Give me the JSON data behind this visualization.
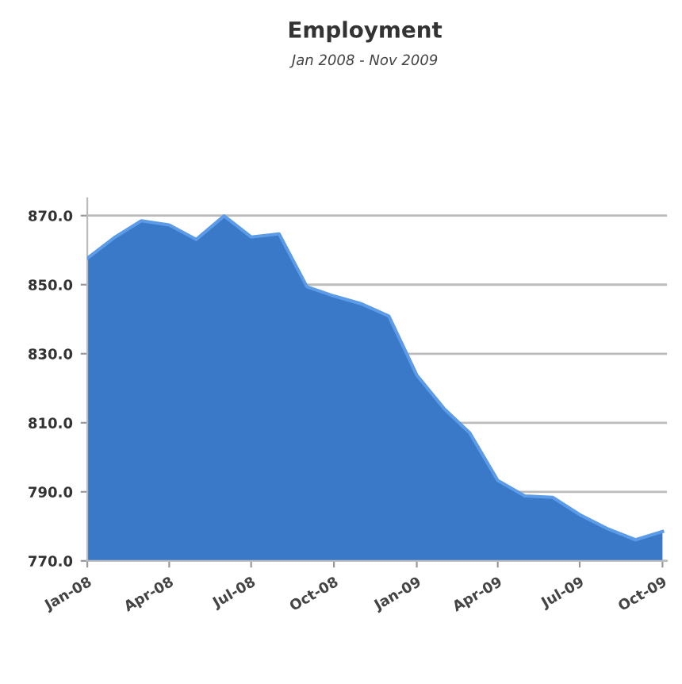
{
  "chart_data": {
    "type": "area",
    "title": "Employment",
    "subtitle": "Jan 2008 - Nov 2009",
    "x": [
      "2008-01",
      "2008-02",
      "2008-03",
      "2008-04",
      "2008-05",
      "2008-06",
      "2008-07",
      "2008-08",
      "2008-09",
      "2008-10",
      "2008-11",
      "2008-12",
      "2009-01",
      "2009-02",
      "2009-03",
      "2009-04",
      "2009-05",
      "2009-06",
      "2009-07",
      "2009-08",
      "2009-09",
      "2009-10"
    ],
    "series": [
      {
        "color": "#3a78c8",
        "values": [
          857.6,
          863.8,
          868.5,
          867.3,
          863.1,
          869.9,
          863.8,
          864.7,
          849.4,
          846.7,
          844.4,
          840.9,
          823.8,
          813.9,
          807.0,
          793.3,
          788.8,
          788.4,
          783.4,
          779.3,
          776.1,
          778.5
        ]
      }
    ],
    "xlim": [
      "2008-01-01",
      "2009-10-06"
    ],
    "xticks": [
      {
        "value": "2008-01-01",
        "label": "Jan-08"
      },
      {
        "value": "2008-04-01",
        "label": "Apr-08"
      },
      {
        "value": "2008-07-01",
        "label": "Jul-08"
      },
      {
        "value": "2008-10-01",
        "label": "Oct-08"
      },
      {
        "value": "2009-01-01",
        "label": "Jan-09"
      },
      {
        "value": "2009-04-01",
        "label": "Apr-09"
      },
      {
        "value": "2009-07-01",
        "label": "Jul-09"
      },
      {
        "value": "2009-10-01",
        "label": "Oct-09"
      }
    ],
    "ylim": [
      770,
      875
    ],
    "yticks": [
      {
        "value": 770,
        "label": "770.0"
      },
      {
        "value": 790,
        "label": "790.0"
      },
      {
        "value": 810,
        "label": "810.0"
      },
      {
        "value": 830,
        "label": "830.0"
      },
      {
        "value": 850,
        "label": "850.0"
      },
      {
        "value": 870,
        "label": "870.0"
      }
    ],
    "grid": "y"
  }
}
